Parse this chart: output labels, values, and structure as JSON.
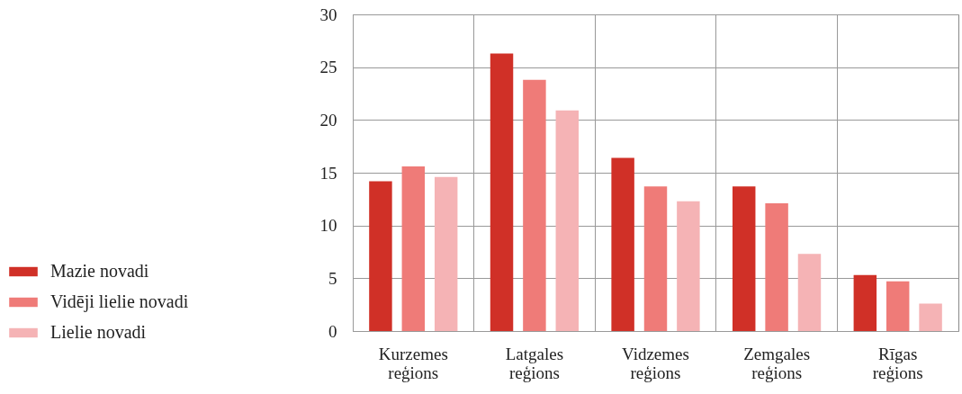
{
  "chart_data": {
    "type": "bar",
    "categories": [
      "Kurzemes reģions",
      "Latgales reģions",
      "Vidzemes reģions",
      "Zemgales reģions",
      "Rīgas reģions"
    ],
    "series": [
      {
        "name": "Mazie novadi",
        "color": "#d03027",
        "values": [
          14.2,
          26.3,
          16.4,
          13.7,
          5.3
        ]
      },
      {
        "name": "Vidēji lielie novadi",
        "color": "#ef7b78",
        "values": [
          15.6,
          23.8,
          13.7,
          12.1,
          4.7
        ]
      },
      {
        "name": "Lielie novadi",
        "color": "#f5b3b5",
        "values": [
          14.6,
          20.9,
          12.3,
          7.3,
          2.6
        ]
      }
    ],
    "ylim": [
      0,
      30
    ],
    "yticks": [
      0,
      5,
      10,
      15,
      20,
      25,
      30
    ],
    "grid": true,
    "legend": "left"
  }
}
